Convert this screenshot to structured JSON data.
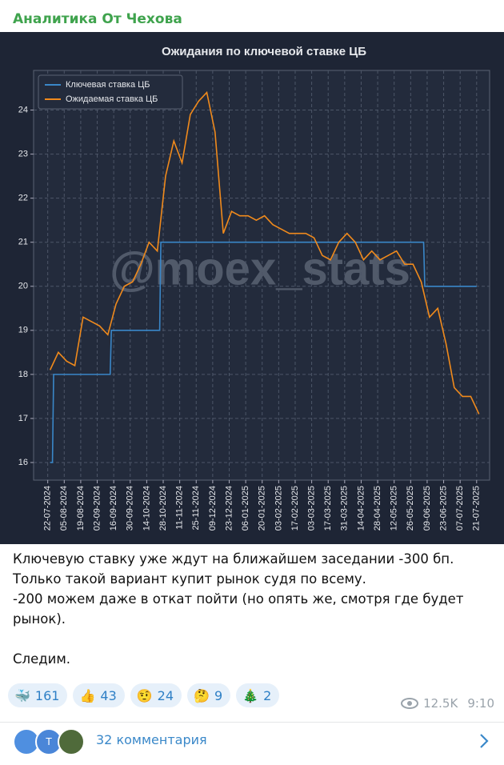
{
  "header": {
    "channel": "Аналитика От Чехова"
  },
  "chart_data": {
    "type": "line",
    "title": "Ожидания по ключевой ставке ЦБ",
    "watermark": "@moex_stats",
    "series": [
      {
        "name": "Ключевая ставка ЦБ",
        "color": "#3a87c8",
        "x": [
          "2024-07-24",
          "2024-07-26",
          "2024-07-27",
          "2024-09-13",
          "2024-09-14",
          "2024-10-25",
          "2024-10-26",
          "2025-06-06",
          "2025-06-07",
          "2025-07-21"
        ],
        "values": [
          16,
          16,
          18,
          18,
          19,
          19,
          21,
          21,
          20,
          20
        ]
      },
      {
        "name": "Ожидаемая ставка ЦБ",
        "color": "#f08a1c",
        "x": [
          "2024-07-24",
          "2024-07-31",
          "2024-08-07",
          "2024-08-14",
          "2024-08-21",
          "2024-08-28",
          "2024-09-04",
          "2024-09-11",
          "2024-09-18",
          "2024-09-25",
          "2024-10-02",
          "2024-10-09",
          "2024-10-16",
          "2024-10-23",
          "2024-10-30",
          "2024-11-06",
          "2024-11-13",
          "2024-11-20",
          "2024-11-27",
          "2024-12-04",
          "2024-12-11",
          "2024-12-18",
          "2024-12-25",
          "2025-01-01",
          "2025-01-08",
          "2025-01-15",
          "2025-01-22",
          "2025-01-29",
          "2025-02-05",
          "2025-02-12",
          "2025-02-19",
          "2025-02-26",
          "2025-03-05",
          "2025-03-12",
          "2025-03-19",
          "2025-03-26",
          "2025-04-02",
          "2025-04-09",
          "2025-04-16",
          "2025-04-23",
          "2025-04-30",
          "2025-05-07",
          "2025-05-14",
          "2025-05-21",
          "2025-05-28",
          "2025-06-04",
          "2025-06-11",
          "2025-06-18",
          "2025-06-25",
          "2025-07-02",
          "2025-07-09",
          "2025-07-16",
          "2025-07-23"
        ],
        "values": [
          18.1,
          18.5,
          18.3,
          18.2,
          19.3,
          19.2,
          19.1,
          18.9,
          19.6,
          20.0,
          20.1,
          20.5,
          21.0,
          20.8,
          22.5,
          23.3,
          22.8,
          23.9,
          24.2,
          24.4,
          23.5,
          21.2,
          21.7,
          21.6,
          21.6,
          21.5,
          21.6,
          21.4,
          21.3,
          21.2,
          21.2,
          21.2,
          21.1,
          20.7,
          20.6,
          21.0,
          21.2,
          21.0,
          20.6,
          20.8,
          20.6,
          20.7,
          20.8,
          20.5,
          20.5,
          20.1,
          19.3,
          19.5,
          18.7,
          17.7,
          17.5,
          17.5,
          17.1
        ]
      }
    ],
    "xlim": [
      "2024-07-10",
      "2025-08-01"
    ],
    "xticks": [
      {
        "value": "2024-07-22",
        "label": "22-07-2024"
      },
      {
        "value": "2024-08-05",
        "label": "05-08-2024"
      },
      {
        "value": "2024-08-19",
        "label": "19-08-2024"
      },
      {
        "value": "2024-09-02",
        "label": "02-09-2024"
      },
      {
        "value": "2024-09-16",
        "label": "16-09-2024"
      },
      {
        "value": "2024-09-30",
        "label": "30-09-2024"
      },
      {
        "value": "2024-10-14",
        "label": "14-10-2024"
      },
      {
        "value": "2024-10-28",
        "label": "28-10-2024"
      },
      {
        "value": "2024-11-11",
        "label": "11-11-2024"
      },
      {
        "value": "2024-11-25",
        "label": "25-11-2024"
      },
      {
        "value": "2024-12-09",
        "label": "09-12-2024"
      },
      {
        "value": "2024-12-23",
        "label": "23-12-2024"
      },
      {
        "value": "2025-01-06",
        "label": "06-01-2025"
      },
      {
        "value": "2025-01-20",
        "label": "20-01-2025"
      },
      {
        "value": "2025-02-03",
        "label": "03-02-2025"
      },
      {
        "value": "2025-02-17",
        "label": "17-02-2025"
      },
      {
        "value": "2025-03-03",
        "label": "03-03-2025"
      },
      {
        "value": "2025-03-17",
        "label": "17-03-2025"
      },
      {
        "value": "2025-03-31",
        "label": "31-03-2025"
      },
      {
        "value": "2025-04-14",
        "label": "14-04-2025"
      },
      {
        "value": "2025-04-28",
        "label": "28-04-2025"
      },
      {
        "value": "2025-05-12",
        "label": "12-05-2025"
      },
      {
        "value": "2025-05-26",
        "label": "26-05-2025"
      },
      {
        "value": "2025-06-09",
        "label": "09-06-2025"
      },
      {
        "value": "2025-06-23",
        "label": "23-06-2025"
      },
      {
        "value": "2025-07-07",
        "label": "07-07-2025"
      },
      {
        "value": "2025-07-21",
        "label": "21-07-2025"
      }
    ],
    "ylim": [
      15.6,
      24.9
    ],
    "yticks": [
      16,
      17,
      18,
      19,
      20,
      21,
      22,
      23,
      24
    ],
    "grid": true,
    "legend": "upper-left"
  },
  "post": {
    "lines": [
      "Ключевую ставку уже ждут на ближайшем заседании -300 бп.",
      "Только такой вариант купит рынок судя по всему.",
      "-200 можем даже в откат пойти (но опять же, смотря где будет",
      "рынок)."
    ],
    "closing": "Следим.",
    "reactions": [
      {
        "emoji": "🐳",
        "count": 161
      },
      {
        "emoji": "👍",
        "count": 43
      },
      {
        "emoji": "🤨",
        "count": 24
      },
      {
        "emoji": "🤔",
        "count": 9
      },
      {
        "emoji": "🎄",
        "count": 2
      }
    ],
    "views": "12.5K",
    "time": "9:10"
  },
  "footer": {
    "avatar_letter": "Т",
    "comments": "32 комментария"
  }
}
